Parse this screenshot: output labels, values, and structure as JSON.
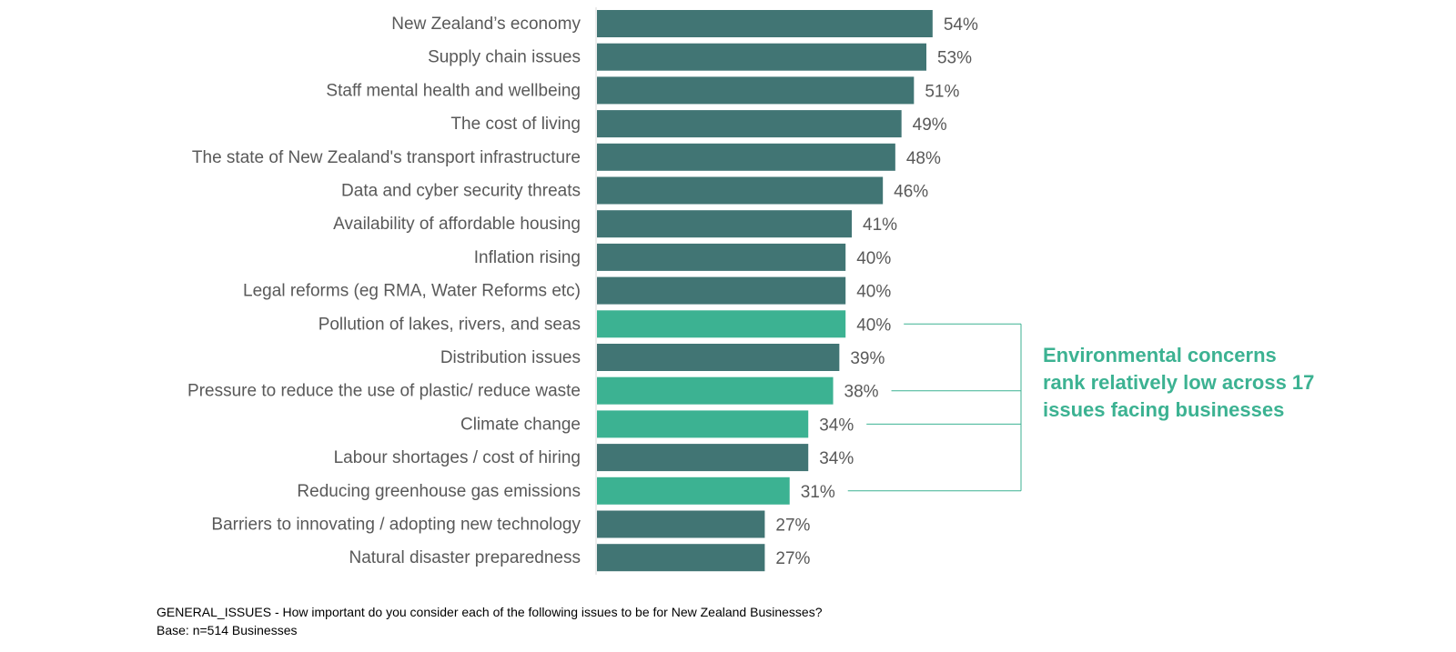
{
  "chart_data": {
    "type": "bar",
    "orientation": "horizontal",
    "categories": [
      "New Zealand’s economy",
      "Supply chain issues",
      "Staff mental health and wellbeing",
      "The cost of living",
      "The state of New Zealand's transport infrastructure",
      "Data and cyber security threats",
      "Availability of affordable housing",
      "Inflation rising",
      "Legal reforms (eg RMA, Water Reforms etc)",
      "Pollution of lakes, rivers, and seas",
      "Distribution issues",
      "Pressure to reduce the use of plastic/ reduce waste",
      "Climate change",
      "Labour shortages / cost of hiring",
      "Reducing greenhouse gas emissions",
      "Barriers to innovating / adopting new technology",
      "Natural disaster preparedness"
    ],
    "values": [
      54,
      53,
      51,
      49,
      48,
      46,
      41,
      40,
      40,
      40,
      39,
      38,
      34,
      34,
      31,
      27,
      27
    ],
    "value_labels": [
      "54%",
      "53%",
      "51%",
      "49%",
      "48%",
      "46%",
      "41%",
      "40%",
      "40%",
      "40%",
      "39%",
      "38%",
      "34%",
      "34%",
      "31%",
      "27%",
      "27%"
    ],
    "highlighted": [
      false,
      false,
      false,
      false,
      false,
      false,
      false,
      false,
      false,
      true,
      false,
      true,
      true,
      false,
      true,
      false,
      false
    ],
    "xlim": [
      0,
      100
    ],
    "grid": false,
    "colors": {
      "default": "#417574",
      "highlight": "#3cb292",
      "bracket": "#3cb292"
    }
  },
  "annotation": {
    "text": "Environmental concerns rank relatively low across 17 issues facing businesses"
  },
  "footnote": {
    "question": "GENERAL_ISSUES - How important do you consider each of the following issues to be for New Zealand Businesses?",
    "base": "Base: n=514 Businesses"
  }
}
